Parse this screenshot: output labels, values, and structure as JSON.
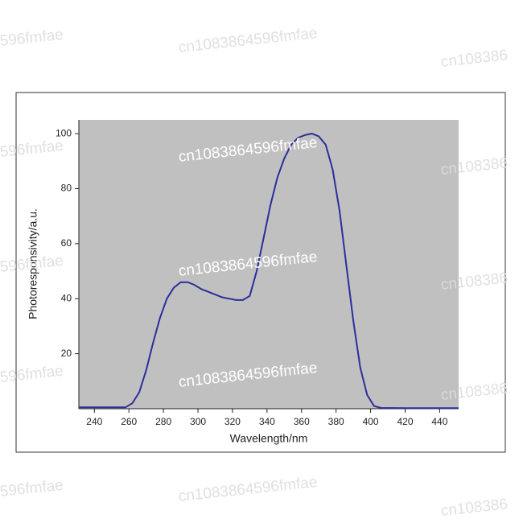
{
  "chart_data": {
    "type": "line",
    "x_label": "Wavelength/nm",
    "y_label": "Photoresponsivity/a.u.",
    "x": [
      231,
      250,
      258,
      262,
      266,
      270,
      274,
      278,
      282,
      286,
      290,
      294,
      298,
      302,
      306,
      310,
      314,
      318,
      322,
      326,
      330,
      334,
      338,
      342,
      346,
      350,
      354,
      358,
      362,
      366,
      370,
      374,
      378,
      382,
      386,
      390,
      394,
      398,
      402,
      406,
      420,
      451
    ],
    "series": [
      {
        "color": "#2a2f9c",
        "values": [
          0.5,
          0.5,
          0.5,
          2,
          6,
          14,
          24,
          33,
          40,
          44,
          46,
          46,
          45,
          43.5,
          42.5,
          41.5,
          40.5,
          40,
          39.5,
          39.5,
          41,
          50,
          62,
          74,
          84,
          91,
          96,
          98.5,
          99.5,
          100,
          99,
          96,
          87,
          72,
          52,
          32,
          15,
          5,
          1,
          0.3,
          0.2,
          0.2
        ]
      }
    ],
    "xlim": [
      231,
      451
    ],
    "xticks": [
      240,
      260,
      280,
      300,
      320,
      340,
      360,
      380,
      400,
      420,
      440
    ],
    "ylim": [
      0,
      105
    ],
    "yticks": [
      20,
      40,
      60,
      80,
      100
    ],
    "plot_background": "#c0c0c0",
    "watermarks": [
      "596fmfae",
      "cn1083864596fmfae",
      "cn108386",
      "596fmfae",
      "cn1083864596fmfae",
      "cn108386",
      "596fmfae",
      "cn1083864596fmfae",
      "cn108386",
      "596fmfae",
      "cn1083864596fmfae",
      "cn108386",
      "596fmfae",
      "cn1083864596fmfae",
      "cn108386"
    ]
  }
}
